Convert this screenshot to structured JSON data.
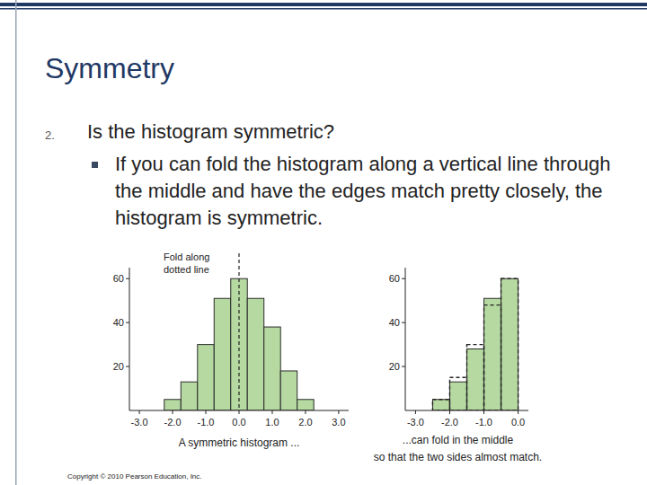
{
  "slide": {
    "title": "Symmetry",
    "number": "2.",
    "question": "Is the histogram symmetric?",
    "bullet": "If you can fold the histogram along a vertical line through the middle and have the edges match pretty closely, the histogram is symmetric.",
    "copyright": "Copyright © 2010 Pearson Education, Inc."
  },
  "chart_data": [
    {
      "type": "histogram",
      "annotation": [
        "Fold along",
        "dotted line"
      ],
      "caption": [
        "A symmetric histogram ..."
      ],
      "bins": [
        -2.25,
        -1.75,
        -1.25,
        -0.75,
        -0.25,
        0.25,
        0.75,
        1.25,
        1.75,
        2.25
      ],
      "values": [
        5,
        13,
        30,
        51,
        60,
        51,
        38,
        18,
        5
      ],
      "color": "#b5d9a0",
      "fold_line": 0,
      "xlim": [
        -3.3,
        3.3
      ],
      "ylim": [
        0,
        65
      ],
      "xticks": [
        {
          "value": -3,
          "label": "-3.0"
        },
        {
          "value": -2,
          "label": "-2.0"
        },
        {
          "value": -1,
          "label": "-1.0"
        },
        {
          "value": 0,
          "label": "0.0"
        },
        {
          "value": 1,
          "label": "1.0"
        },
        {
          "value": 2,
          "label": "2.0"
        },
        {
          "value": 3,
          "label": "3.0"
        }
      ],
      "yticks": [
        20,
        40,
        60
      ],
      "grid": false
    },
    {
      "type": "histogram",
      "caption": [
        "...can fold in the middle",
        "so that the two sides almost match."
      ],
      "bins": [
        -2.5,
        -2,
        -1.5,
        -1,
        -0.5,
        0
      ],
      "series": [
        {
          "values": [
            5,
            13,
            28,
            51,
            60
          ],
          "color": "#b5d9a0",
          "line_style": "solid"
        },
        {
          "values": [
            5,
            15,
            30,
            48,
            60
          ],
          "color": "#222222",
          "line_style": "dashed"
        }
      ],
      "xlim": [
        -3.3,
        0.3
      ],
      "ylim": [
        0,
        65
      ],
      "xticks": [
        {
          "value": -3,
          "label": "-3.0"
        },
        {
          "value": -2,
          "label": "-2.0"
        },
        {
          "value": -1,
          "label": "-1.0"
        },
        {
          "value": 0,
          "label": "0.0"
        }
      ],
      "yticks": [
        20,
        40,
        60
      ],
      "grid": false
    }
  ]
}
